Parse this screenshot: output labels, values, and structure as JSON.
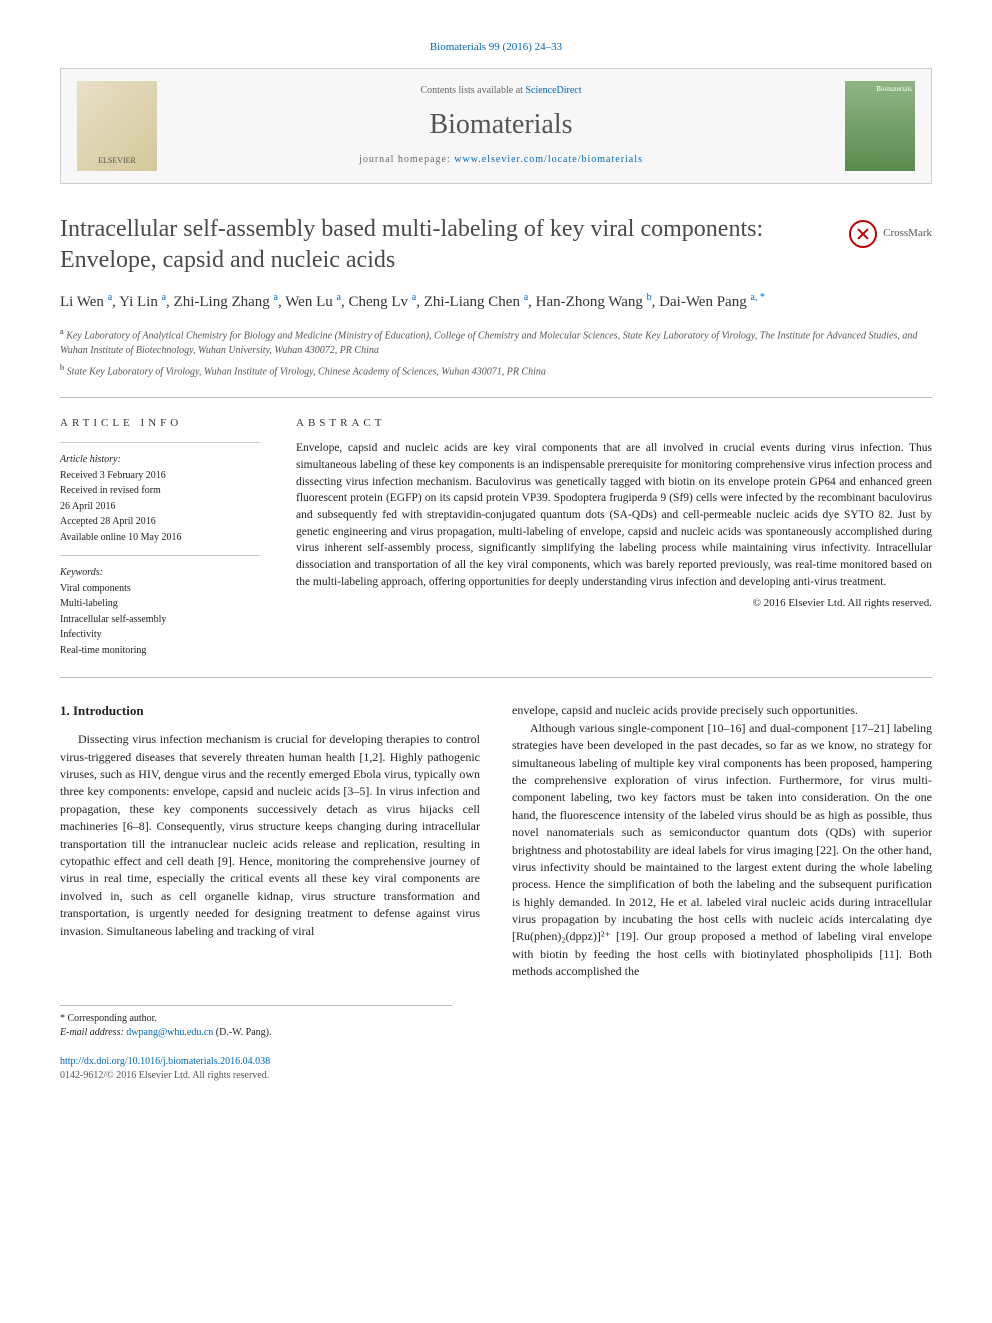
{
  "citation": "Biomaterials 99 (2016) 24–33",
  "banner": {
    "publisher": "ELSEVIER",
    "contents_pre": "Contents lists available at ",
    "contents_link": "ScienceDirect",
    "journal_name": "Biomaterials",
    "homepage_pre": "journal homepage: ",
    "homepage_url": "www.elsevier.com/locate/biomaterials",
    "cover_label": "Biomaterials"
  },
  "title": "Intracellular self-assembly based multi-labeling of key viral components: Envelope, capsid and nucleic acids",
  "crossmark_label": "CrossMark",
  "authors_html": "Li Wen <sup>a</sup>, Yi Lin <sup>a</sup>, Zhi-Ling Zhang <sup>a</sup>, Wen Lu <sup>a</sup>, Cheng Lv <sup>a</sup>, Zhi-Liang Chen <sup>a</sup>, Han-Zhong Wang <sup>b</sup>, Dai-Wen Pang <sup>a, *</sup>",
  "affiliations": [
    {
      "sup": "a",
      "text": "Key Laboratory of Analytical Chemistry for Biology and Medicine (Ministry of Education), College of Chemistry and Molecular Sciences, State Key Laboratory of Virology, The Institute for Advanced Studies, and Wuhan Institute of Biotechnology, Wuhan University, Wuhan 430072, PR China"
    },
    {
      "sup": "b",
      "text": "State Key Laboratory of Virology, Wuhan Institute of Virology, Chinese Academy of Sciences, Wuhan 430071, PR China"
    }
  ],
  "article_info": {
    "heading": "ARTICLE INFO",
    "history_label": "Article history:",
    "history": [
      "Received 3 February 2016",
      "Received in revised form",
      "26 April 2016",
      "Accepted 28 April 2016",
      "Available online 10 May 2016"
    ],
    "keywords_label": "Keywords:",
    "keywords": [
      "Viral components",
      "Multi-labeling",
      "Intracellular self-assembly",
      "Infectivity",
      "Real-time monitoring"
    ]
  },
  "abstract": {
    "heading": "ABSTRACT",
    "text": "Envelope, capsid and nucleic acids are key viral components that are all involved in crucial events during virus infection. Thus simultaneous labeling of these key components is an indispensable prerequisite for monitoring comprehensive virus infection process and dissecting virus infection mechanism. Baculovirus was genetically tagged with biotin on its envelope protein GP64 and enhanced green fluorescent protein (EGFP) on its capsid protein VP39. Spodoptera frugiperda 9 (Sf9) cells were infected by the recombinant baculovirus and subsequently fed with streptavidin-conjugated quantum dots (SA-QDs) and cell-permeable nucleic acids dye SYTO 82. Just by genetic engineering and virus propagation, multi-labeling of envelope, capsid and nucleic acids was spontaneously accomplished during virus inherent self-assembly process, significantly simplifying the labeling process while maintaining virus infectivity. Intracellular dissociation and transportation of all the key viral components, which was barely reported previously, was real-time monitored based on the multi-labeling approach, offering opportunities for deeply understanding virus infection and developing anti-virus treatment.",
    "copyright": "© 2016 Elsevier Ltd. All rights reserved."
  },
  "section1": {
    "heading": "1. Introduction",
    "para1": "Dissecting virus infection mechanism is crucial for developing therapies to control virus-triggered diseases that severely threaten human health [1,2]. Highly pathogenic viruses, such as HIV, dengue virus and the recently emerged Ebola virus, typically own three key components: envelope, capsid and nucleic acids [3–5]. In virus infection and propagation, these key components successively detach as virus hijacks cell machineries [6–8]. Consequently, virus structure keeps changing during intracellular transportation till the intranuclear nucleic acids release and replication, resulting in cytopathic effect and cell death [9]. Hence, monitoring the comprehensive journey of virus in real time, especially the critical events all these key viral components are involved in, such as cell organelle kidnap, virus structure transformation and transportation, is urgently needed for designing treatment to defense against virus invasion. Simultaneous labeling and tracking of viral",
    "para2a": "envelope, capsid and nucleic acids provide precisely such opportunities.",
    "para2b": "Although various single-component [10–16] and dual-component [17–21] labeling strategies have been developed in the past decades, so far as we know, no strategy for simultaneous labeling of multiple key viral components has been proposed, hampering the comprehensive exploration of virus infection. Furthermore, for virus multi-component labeling, two key factors must be taken into consideration. On the one hand, the fluorescence intensity of the labeled virus should be as high as possible, thus novel nanomaterials such as semiconductor quantum dots (QDs) with superior brightness and photostability are ideal labels for virus imaging [22]. On the other hand, virus infectivity should be maintained to the largest extent during the whole labeling process. Hence the simplification of both the labeling and the subsequent purification is highly demanded. In 2012, He et al. labeled viral nucleic acids during intracellular virus propagation by incubating the host cells with nucleic acids intercalating dye [Ru(phen)₂(dppz)]²⁺ [19]. Our group proposed a method of labeling viral envelope with biotin by feeding the host cells with biotinylated phospholipids [11]. Both methods accomplished the"
  },
  "footnote": {
    "corr": "* Corresponding author.",
    "email_label": "E-mail address: ",
    "email": "dwpang@whu.edu.cn",
    "email_who": " (D.-W. Pang)."
  },
  "footer": {
    "doi": "http://dx.doi.org/10.1016/j.biomaterials.2016.04.038",
    "issn_line": "0142-9612/© 2016 Elsevier Ltd. All rights reserved."
  },
  "colors": {
    "link": "#0066b3",
    "rule": "#bbbbbb",
    "heading": "#4a4a4a",
    "body": "#222222"
  }
}
